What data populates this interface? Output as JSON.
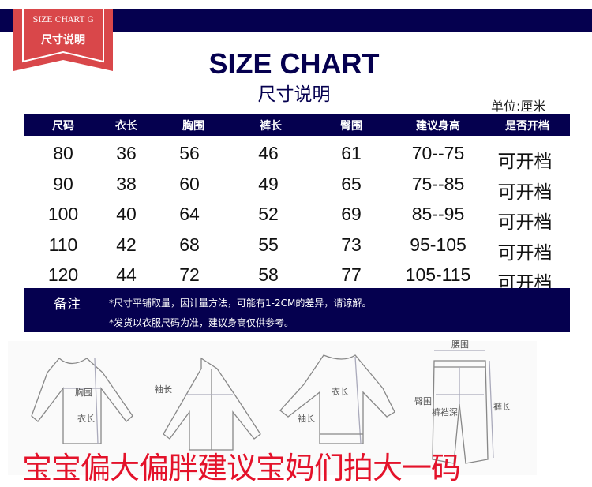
{
  "ribbon": {
    "en": "SIZE CHART G",
    "cn": "尺寸说明"
  },
  "title": "SIZE CHART",
  "subtitle": "尺寸说明",
  "unit": "单位:厘米",
  "table": {
    "headers": [
      "尺码",
      "衣长",
      "胸围",
      "裤长",
      "臀围",
      "建议身高",
      "是否开档"
    ],
    "rows": [
      [
        "80",
        "36",
        "56",
        "46",
        "61",
        "70--75",
        "可开档"
      ],
      [
        "90",
        "38",
        "60",
        "49",
        "65",
        "75--85",
        "可开档"
      ],
      [
        "100",
        "40",
        "64",
        "52",
        "69",
        "85--95",
        "可开档"
      ],
      [
        "110",
        "42",
        "68",
        "55",
        "73",
        "95-105",
        "可开档"
      ],
      [
        "120",
        "44",
        "72",
        "58",
        "77",
        "105-115",
        "可开档"
      ]
    ]
  },
  "notes": {
    "label": "备注",
    "lines": [
      "*尺寸平铺取量，因计量方法，可能有1-2CM的差异，请谅解。",
      "*发货以衣服尺码为准，建议身高仅供参考。"
    ]
  },
  "diagram_labels": {
    "chest": "胸围",
    "length": "衣长",
    "sleeve": "袖长",
    "length2": "衣长",
    "sleeve2": "袖长",
    "waist": "腰围",
    "hip": "臀围",
    "crotch": "裤裆深",
    "pants_length": "裤长"
  },
  "slogan": "宝宝偏大偏胖建议宝妈们拍大一码",
  "colors": {
    "navy": "#05004f",
    "ribbon": "#d9474a",
    "slogan": "#e4122a"
  }
}
